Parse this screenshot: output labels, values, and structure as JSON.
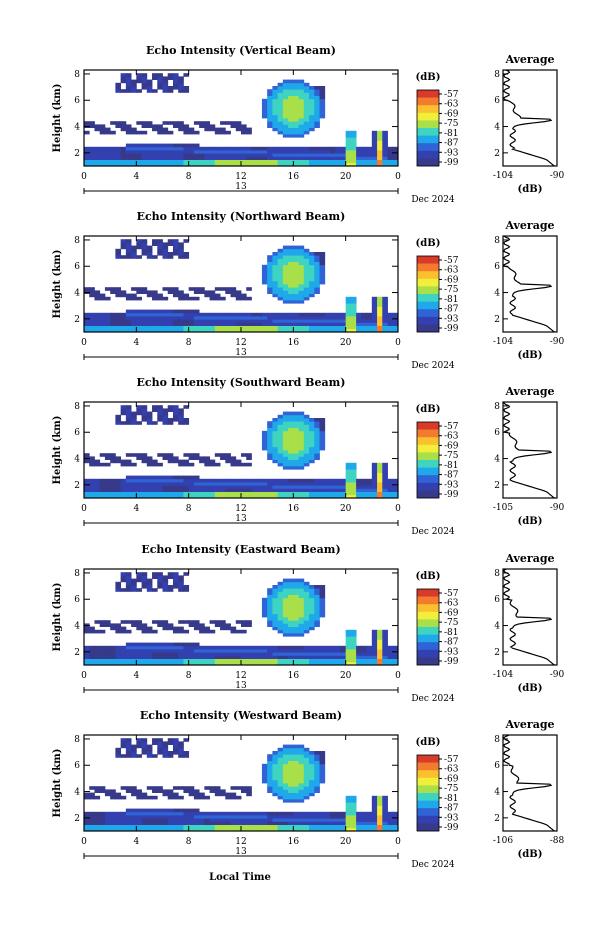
{
  "figure": {
    "xlabel": "Local Time",
    "date_label": "Dec 2024",
    "day_label": "13",
    "colorbar_unit": "(dB)",
    "avg_title": "Average",
    "avg_xlabel": "(dB)"
  },
  "colorbar": {
    "ticks": [
      "-57",
      "-63",
      "-69",
      "-75",
      "-81",
      "-87",
      "-93",
      "-99"
    ],
    "colors": [
      "#d93b2a",
      "#f47a2e",
      "#fbc02d",
      "#f1ef3a",
      "#a9e04a",
      "#3fd3c1",
      "#1fa8ea",
      "#2f63d6",
      "#3340b0",
      "#37398a"
    ]
  },
  "chart_data": [
    {
      "type": "heatmap",
      "title": "Echo Intensity (Vertical Beam)",
      "xlabel": "Local Time",
      "ylabel": "Height (km)",
      "x_ticks": [
        "0",
        "4",
        "8",
        "12",
        "16",
        "20",
        "0"
      ],
      "y_ticks": [
        "2",
        "4",
        "6",
        "8"
      ],
      "xlim": [
        0,
        24
      ],
      "ylim": [
        1,
        8.3
      ],
      "clim": [
        -99,
        -57
      ],
      "average": {
        "xlabel": "(dB)",
        "x_ticks": [
          "-104",
          "-90"
        ],
        "xlim": [
          -104,
          -90
        ],
        "y_ticks": [
          "2",
          "4",
          "6",
          "8"
        ]
      }
    },
    {
      "type": "heatmap",
      "title": "Echo Intensity (Northward Beam)",
      "xlabel": "Local Time",
      "ylabel": "Height (km)",
      "x_ticks": [
        "0",
        "4",
        "8",
        "12",
        "16",
        "20",
        "0"
      ],
      "y_ticks": [
        "2",
        "4",
        "6",
        "8"
      ],
      "xlim": [
        0,
        24
      ],
      "ylim": [
        1,
        8.3
      ],
      "clim": [
        -99,
        -57
      ],
      "average": {
        "xlabel": "(dB)",
        "x_ticks": [
          "-104",
          "-90"
        ],
        "xlim": [
          -104,
          -90
        ],
        "y_ticks": [
          "2",
          "4",
          "6",
          "8"
        ]
      }
    },
    {
      "type": "heatmap",
      "title": "Echo Intensity (Southward Beam)",
      "xlabel": "Local Time",
      "ylabel": "Height (km)",
      "x_ticks": [
        "0",
        "4",
        "8",
        "12",
        "16",
        "20",
        "0"
      ],
      "y_ticks": [
        "2",
        "4",
        "6",
        "8"
      ],
      "xlim": [
        0,
        24
      ],
      "ylim": [
        1,
        8.3
      ],
      "clim": [
        -99,
        -57
      ],
      "average": {
        "xlabel": "(dB)",
        "x_ticks": [
          "-105",
          "-90"
        ],
        "xlim": [
          -105,
          -90
        ],
        "y_ticks": [
          "2",
          "4",
          "6",
          "8"
        ]
      }
    },
    {
      "type": "heatmap",
      "title": "Echo Intensity (Eastward Beam)",
      "xlabel": "Local Time",
      "ylabel": "Height (km)",
      "x_ticks": [
        "0",
        "4",
        "8",
        "12",
        "16",
        "20",
        "0"
      ],
      "y_ticks": [
        "2",
        "4",
        "6",
        "8"
      ],
      "xlim": [
        0,
        24
      ],
      "ylim": [
        1,
        8.3
      ],
      "clim": [
        -99,
        -57
      ],
      "average": {
        "xlabel": "(dB)",
        "x_ticks": [
          "-104",
          "-90"
        ],
        "xlim": [
          -104,
          -90
        ],
        "y_ticks": [
          "2",
          "4",
          "6",
          "8"
        ]
      }
    },
    {
      "type": "heatmap",
      "title": "Echo Intensity (Westward Beam)",
      "xlabel": "Local Time",
      "ylabel": "Height (km)",
      "x_ticks": [
        "0",
        "4",
        "8",
        "12",
        "16",
        "20",
        "0"
      ],
      "y_ticks": [
        "2",
        "4",
        "6",
        "8"
      ],
      "xlim": [
        0,
        24
      ],
      "ylim": [
        1,
        8.3
      ],
      "clim": [
        -99,
        -57
      ],
      "average": {
        "xlabel": "(dB)",
        "x_ticks": [
          "-106",
          "-88"
        ],
        "xlim": [
          -106,
          -88
        ],
        "y_ticks": [
          "2",
          "4",
          "6",
          "8"
        ]
      }
    }
  ]
}
